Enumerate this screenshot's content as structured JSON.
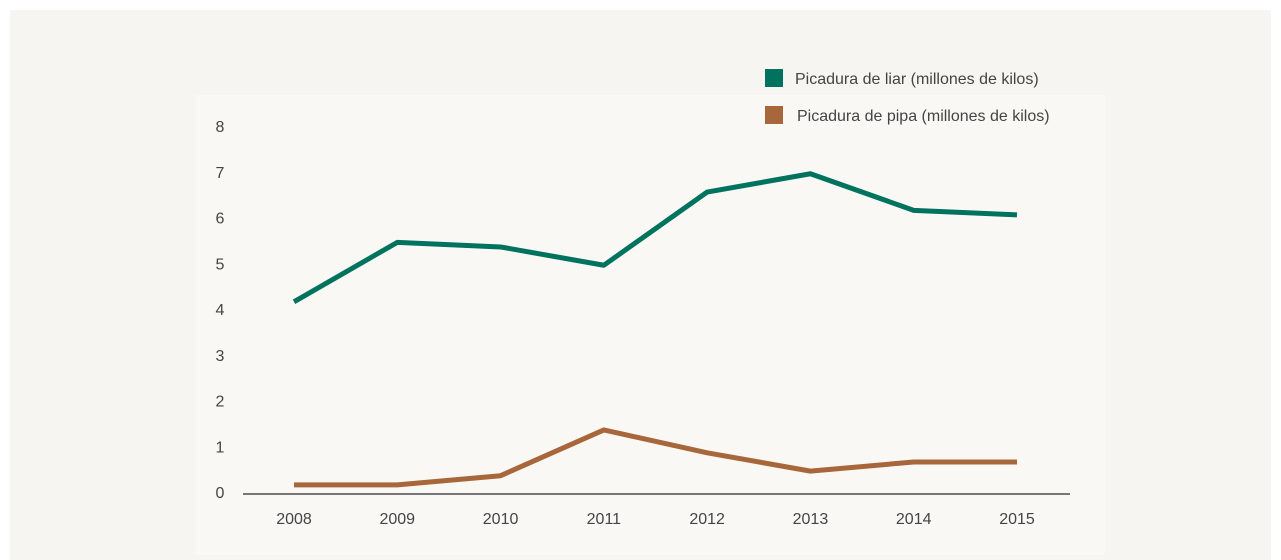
{
  "chart_data": {
    "type": "line",
    "categories": [
      "2008",
      "2009",
      "2010",
      "2011",
      "2012",
      "2013",
      "2014",
      "2015"
    ],
    "series": [
      {
        "name": "Picadura de liar (millones de kilos)",
        "color": "#00735e",
        "values": [
          4.2,
          5.5,
          5.4,
          5.0,
          6.6,
          7.0,
          6.2,
          6.1
        ]
      },
      {
        "name": "Picadura de pipa (millones de kilos)",
        "color": "#a8673a",
        "values": [
          0.2,
          0.2,
          0.4,
          1.4,
          0.9,
          0.5,
          0.7,
          0.7
        ]
      }
    ],
    "ylim": [
      0,
      8
    ],
    "yticks": [
      0,
      1,
      2,
      3,
      4,
      5,
      6,
      7,
      8
    ],
    "grid": false,
    "legend": "top-right"
  }
}
